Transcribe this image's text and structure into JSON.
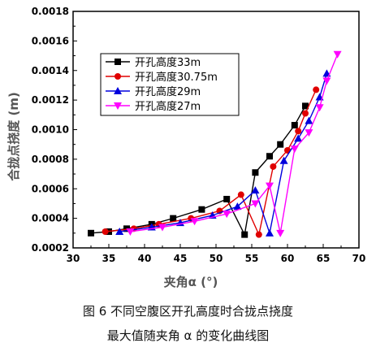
{
  "chart_data": {
    "type": "line",
    "xlabel": "夹角α (°)",
    "ylabel": "合拢点挠度 (m)",
    "xlim": [
      30,
      70
    ],
    "ylim": [
      0.0002,
      0.0018
    ],
    "xticks": [
      30,
      35,
      40,
      45,
      50,
      55,
      60,
      65,
      70
    ],
    "yticks": [
      0.0002,
      0.0004,
      0.0006,
      0.0008,
      0.001,
      0.0012,
      0.0014,
      0.0016,
      0.0018
    ],
    "ytick_labels": [
      "0.0002",
      "0.0004",
      "0.0006",
      "0.0008",
      "0.0010",
      "0.0012",
      "0.0014",
      "0.0016",
      "0.0018"
    ],
    "legend_position": "upper-left",
    "series": [
      {
        "name": "开孔高度33m",
        "color": "#000000",
        "marker": "square",
        "x": [
          32.5,
          35.0,
          37.5,
          41.0,
          44.0,
          48.0,
          51.5,
          54.0,
          55.5,
          57.5,
          59.0,
          61.0,
          62.5
        ],
        "y": [
          0.0003,
          0.00031,
          0.00033,
          0.00036,
          0.0004,
          0.00046,
          0.00053,
          0.00029,
          0.00071,
          0.00082,
          0.0009,
          0.00103,
          0.00116
        ]
      },
      {
        "name": "开孔高度30.75m",
        "color": "#e00000",
        "marker": "circle",
        "x": [
          34.5,
          38.5,
          42.0,
          46.5,
          50.5,
          53.5,
          56.0,
          58.0,
          60.0,
          61.5,
          62.5,
          64.0
        ],
        "y": [
          0.00031,
          0.00033,
          0.00036,
          0.0004,
          0.00045,
          0.00056,
          0.00029,
          0.00075,
          0.00086,
          0.00099,
          0.00111,
          0.00127
        ]
      },
      {
        "name": "开孔高度29m",
        "color": "#0000dd",
        "marker": "triangle-up",
        "x": [
          36.5,
          41.0,
          45.0,
          49.5,
          53.0,
          55.5,
          57.5,
          59.5,
          61.5,
          63.0,
          64.5,
          65.5
        ],
        "y": [
          0.00031,
          0.00034,
          0.00037,
          0.00042,
          0.00048,
          0.00059,
          0.0003,
          0.00079,
          0.00094,
          0.00106,
          0.00122,
          0.00138
        ]
      },
      {
        "name": "开孔高度27m",
        "color": "#ff00ff",
        "marker": "triangle-down",
        "x": [
          38.0,
          42.5,
          47.0,
          51.5,
          55.5,
          57.5,
          59.0,
          61.0,
          63.0,
          64.5,
          65.5,
          67.0
        ],
        "y": [
          0.00031,
          0.00034,
          0.00038,
          0.00043,
          0.0005,
          0.00062,
          0.0003,
          0.00087,
          0.00098,
          0.00115,
          0.00133,
          0.00151
        ]
      }
    ]
  },
  "caption": {
    "line1": "图 6    不同空腹区开孔高度时合拢点挠度",
    "line2": "最大值随夹角 α 的变化曲线图"
  }
}
